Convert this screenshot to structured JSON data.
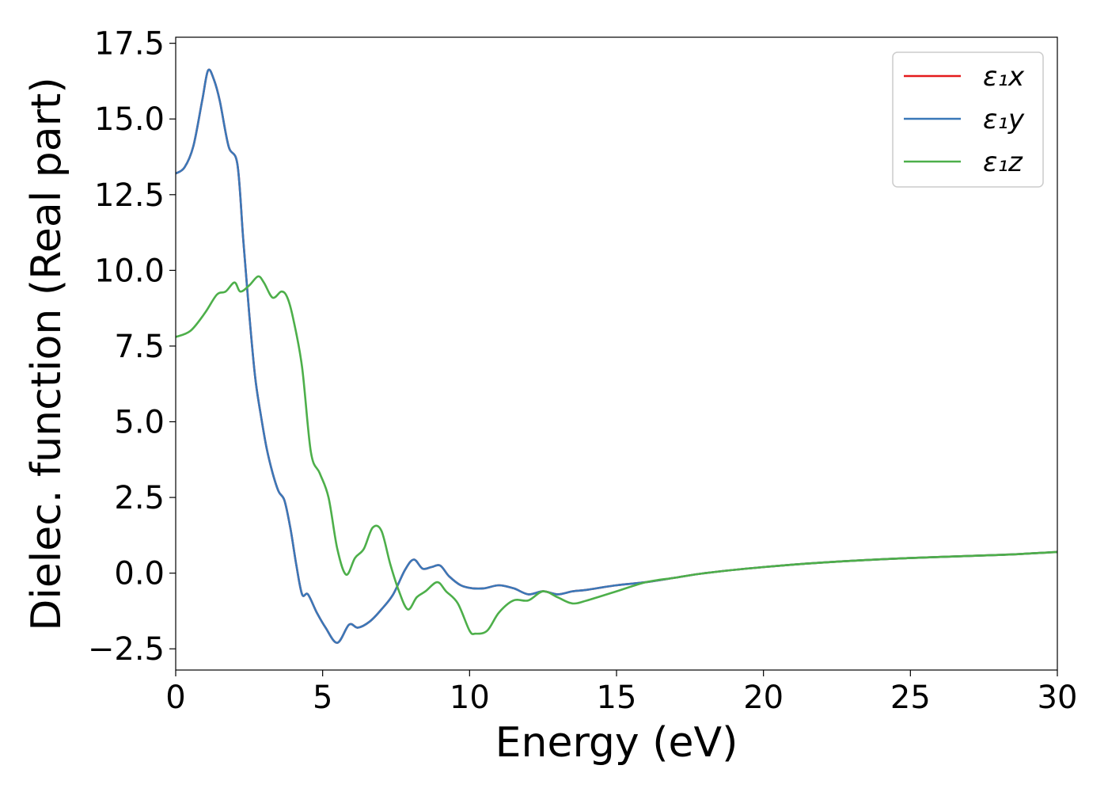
{
  "chart_data": {
    "type": "line",
    "title": "",
    "xlabel": "Energy (eV)",
    "ylabel": "Dielec. function (Real part)",
    "xlim": [
      0,
      30
    ],
    "ylim": [
      -3.2,
      17.7
    ],
    "xticks": [
      0,
      5,
      10,
      15,
      20,
      25,
      30
    ],
    "xtick_labels": [
      "0",
      "5",
      "10",
      "15",
      "20",
      "25",
      "30"
    ],
    "yticks": [
      -2.5,
      0,
      2.5,
      5,
      7.5,
      10,
      12.5,
      15,
      17.5
    ],
    "ytick_labels": [
      "−2.5",
      "0.0",
      "2.5",
      "5.0",
      "7.5",
      "10.0",
      "12.5",
      "15.0",
      "17.5"
    ],
    "grid": false,
    "legend_position": "top-right",
    "series": [
      {
        "name": "ε₁x",
        "color": "#e41a1c",
        "x": [
          0,
          0.3,
          0.6,
          0.9,
          1.1,
          1.3,
          1.5,
          1.8,
          2.1,
          2.3,
          2.5,
          2.7,
          2.9,
          3.1,
          3.3,
          3.5,
          3.7,
          3.9,
          4.1,
          4.3,
          4.5,
          4.8,
          5.1,
          5.5,
          5.9,
          6.2,
          6.6,
          7.0,
          7.4,
          7.8,
          8.1,
          8.4,
          8.7,
          9.0,
          9.3,
          9.7,
          10.1,
          10.5,
          11.0,
          11.5,
          12.0,
          12.5,
          13.0,
          13.5,
          14.0,
          15.0,
          16.0,
          17.0,
          18.0,
          20.0,
          22.0,
          25.0,
          28.0,
          30.0
        ],
        "y": [
          13.2,
          13.4,
          14.1,
          15.6,
          16.6,
          16.3,
          15.6,
          14.1,
          13.5,
          11.0,
          8.6,
          6.5,
          5.2,
          4.1,
          3.3,
          2.7,
          2.4,
          1.5,
          0.3,
          -0.7,
          -0.7,
          -1.3,
          -1.8,
          -2.3,
          -1.7,
          -1.8,
          -1.6,
          -1.2,
          -0.7,
          0.1,
          0.45,
          0.15,
          0.2,
          0.25,
          -0.1,
          -0.4,
          -0.5,
          -0.5,
          -0.4,
          -0.5,
          -0.7,
          -0.6,
          -0.7,
          -0.6,
          -0.55,
          -0.4,
          -0.3,
          -0.15,
          0.0,
          0.2,
          0.35,
          0.5,
          0.6,
          0.7
        ]
      },
      {
        "name": "ε₁y",
        "color": "#3a78b8",
        "x": [
          0,
          0.3,
          0.6,
          0.9,
          1.1,
          1.3,
          1.5,
          1.8,
          2.1,
          2.3,
          2.5,
          2.7,
          2.9,
          3.1,
          3.3,
          3.5,
          3.7,
          3.9,
          4.1,
          4.3,
          4.5,
          4.8,
          5.1,
          5.5,
          5.9,
          6.2,
          6.6,
          7.0,
          7.4,
          7.8,
          8.1,
          8.4,
          8.7,
          9.0,
          9.3,
          9.7,
          10.1,
          10.5,
          11.0,
          11.5,
          12.0,
          12.5,
          13.0,
          13.5,
          14.0,
          15.0,
          16.0,
          17.0,
          18.0,
          20.0,
          22.0,
          25.0,
          28.0,
          30.0
        ],
        "y": [
          13.2,
          13.4,
          14.1,
          15.6,
          16.6,
          16.3,
          15.6,
          14.1,
          13.5,
          11.0,
          8.6,
          6.5,
          5.2,
          4.1,
          3.3,
          2.7,
          2.4,
          1.5,
          0.3,
          -0.7,
          -0.7,
          -1.3,
          -1.8,
          -2.3,
          -1.7,
          -1.8,
          -1.6,
          -1.2,
          -0.7,
          0.1,
          0.45,
          0.15,
          0.2,
          0.25,
          -0.1,
          -0.4,
          -0.5,
          -0.5,
          -0.4,
          -0.5,
          -0.7,
          -0.6,
          -0.7,
          -0.6,
          -0.55,
          -0.4,
          -0.3,
          -0.15,
          0.0,
          0.2,
          0.35,
          0.5,
          0.6,
          0.7
        ]
      },
      {
        "name": "ε₁z",
        "color": "#4daf4a",
        "x": [
          0,
          0.5,
          1.0,
          1.4,
          1.7,
          2.0,
          2.2,
          2.5,
          2.8,
          3.0,
          3.3,
          3.6,
          3.8,
          4.0,
          4.3,
          4.6,
          4.9,
          5.2,
          5.5,
          5.8,
          6.1,
          6.4,
          6.7,
          7.0,
          7.3,
          7.6,
          7.9,
          8.2,
          8.5,
          8.9,
          9.2,
          9.6,
          10.0,
          10.2,
          10.6,
          11.0,
          11.5,
          12.0,
          12.5,
          13.0,
          13.5,
          14.0,
          15.0,
          16.0,
          17.0,
          18.0,
          20.0,
          22.0,
          25.0,
          28.0,
          30.0
        ],
        "y": [
          7.8,
          8.0,
          8.6,
          9.2,
          9.3,
          9.6,
          9.3,
          9.5,
          9.8,
          9.6,
          9.1,
          9.3,
          9.1,
          8.4,
          6.8,
          4.0,
          3.3,
          2.5,
          0.8,
          -0.05,
          0.5,
          0.8,
          1.5,
          1.4,
          0.3,
          -0.6,
          -1.2,
          -0.8,
          -0.6,
          -0.3,
          -0.6,
          -1.0,
          -1.9,
          -2.0,
          -1.9,
          -1.3,
          -0.9,
          -0.9,
          -0.6,
          -0.8,
          -1.0,
          -0.9,
          -0.6,
          -0.3,
          -0.15,
          0.0,
          0.2,
          0.35,
          0.5,
          0.6,
          0.7
        ]
      }
    ]
  }
}
